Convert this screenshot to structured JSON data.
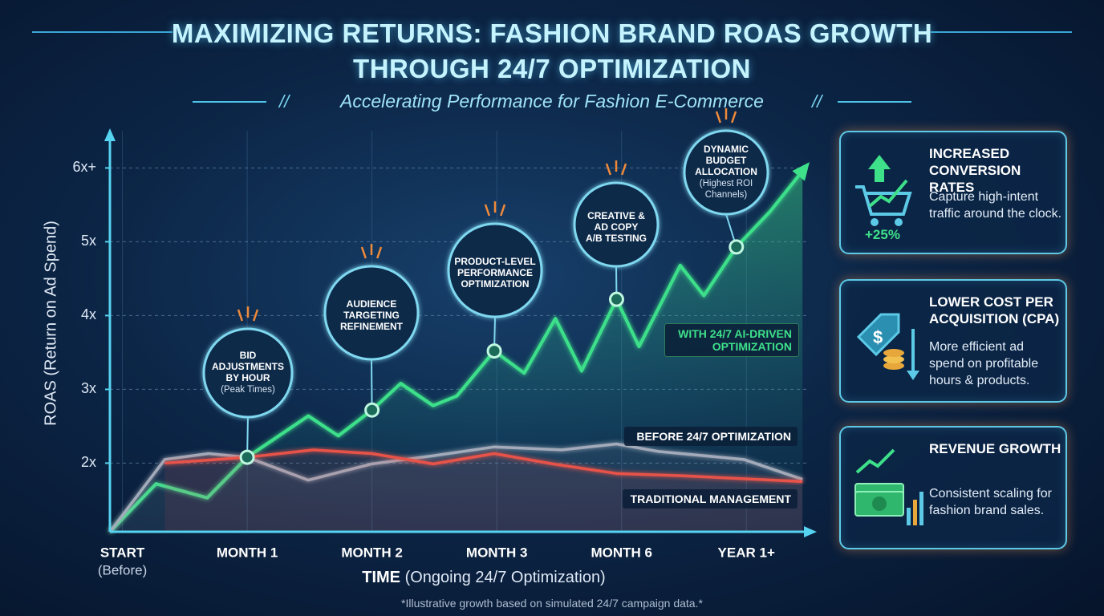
{
  "chart_data": {
    "type": "line",
    "title": "MAXIMIZING RETURNS: FASHION BRAND ROAS GROWTH THROUGH 24/7 OPTIMIZATION",
    "subtitle": "Accelerating Performance for Fashion E-Commerce",
    "y_label": "ROAS (Return on Ad Spend)",
    "x_label": "TIME",
    "x_label_detail": "(Ongoing 24/7 Optimization)",
    "footnote": "*Illustrative growth based on simulated 24/7 campaign data.*",
    "xlim": [
      0,
      5.6
    ],
    "xticks": [
      {
        "value": 0.1,
        "label": "START"
      },
      {
        "value": 1.1,
        "label": "MONTH 1"
      },
      {
        "value": 2.1,
        "label": "MONTH 2"
      },
      {
        "value": 3.1,
        "label": "MONTH 3"
      },
      {
        "value": 4.1,
        "label": "MONTH 6"
      },
      {
        "value": 5.1,
        "label": "YEAR 1+"
      }
    ],
    "x_tick_sublabel": "(Before)",
    "ylim": [
      1.07,
      6.5
    ],
    "yticks": [
      {
        "value": 2,
        "label": "2x"
      },
      {
        "value": 3,
        "label": "3x"
      },
      {
        "value": 4,
        "label": "4x"
      },
      {
        "value": 5,
        "label": "5x"
      },
      {
        "value": 6,
        "label": "6x+"
      }
    ],
    "grid": true,
    "series": [
      {
        "name": "WITH 24/7 AI-DRIVEN OPTIMIZATION",
        "color": "#3ee08a",
        "x": [
          0,
          0.37,
          0.78,
          1.1,
          1.59,
          1.83,
          2.1,
          2.33,
          2.59,
          2.78,
          3.08,
          3.32,
          3.57,
          3.78,
          4.06,
          4.24,
          4.57,
          4.76,
          5.02,
          5.29,
          5.55
        ],
        "values": [
          1.07,
          1.72,
          1.53,
          2.08,
          2.64,
          2.37,
          2.72,
          3.08,
          2.78,
          2.91,
          3.52,
          3.22,
          3.96,
          3.25,
          4.22,
          3.58,
          4.68,
          4.27,
          4.93,
          5.41,
          5.96
        ]
      },
      {
        "name": "BEFORE 24/7 OPTIMIZATION",
        "color": "#a3abba",
        "x": [
          0,
          0.44,
          0.79,
          1.1,
          1.59,
          2.1,
          2.59,
          3.08,
          3.62,
          4.06,
          4.39,
          5.08,
          5.55
        ],
        "values": [
          1.07,
          2.05,
          2.13,
          2.08,
          1.77,
          1.99,
          2.1,
          2.22,
          2.18,
          2.26,
          2.16,
          2.05,
          1.78
        ]
      },
      {
        "name": "TRADITIONAL MANAGEMENT",
        "color": "#e8534a",
        "x": [
          0.44,
          1.1,
          1.63,
          2.1,
          2.59,
          3.08,
          3.55,
          4.06,
          4.58,
          5.55
        ],
        "values": [
          2.0,
          2.08,
          2.18,
          2.13,
          1.99,
          2.13,
          1.99,
          1.86,
          1.83,
          1.75
        ]
      }
    ],
    "annotations": [
      {
        "label_lines": [
          "BID",
          "ADJUSTMENTS",
          "BY HOUR"
        ],
        "sublabel": "(Peak Times)",
        "x": 1.1,
        "y": 2.08
      },
      {
        "label_lines": [
          "AUDIENCE",
          "TARGETING",
          "REFINEMENT"
        ],
        "x": 2.1,
        "y": 2.72
      },
      {
        "label_lines": [
          "PRODUCT-LEVEL",
          "PERFORMANCE",
          "OPTIMIZATION"
        ],
        "x": 3.08,
        "y": 3.52
      },
      {
        "label_lines": [
          "CREATIVE &",
          "AD COPY",
          "A/B TESTING"
        ],
        "x": 4.06,
        "y": 4.22
      },
      {
        "label_lines": [
          "DYNAMIC",
          "BUDGET",
          "ALLOCATION"
        ],
        "sublabel_lines": [
          "(Highest ROI",
          "Channels)"
        ],
        "x": 5.02,
        "y": 4.93
      }
    ],
    "cards": [
      {
        "title": "INCREASED CONVERSION RATES",
        "text": "Capture high-intent traffic around the clock.",
        "badge": "+25%"
      },
      {
        "title": "LOWER COST PER ACQUISITION (CPA)",
        "text": "More efficient ad spend on profitable hours & products."
      },
      {
        "title": "REVENUE GROWTH",
        "text": "Consistent scaling for fashion brand sales."
      }
    ]
  }
}
